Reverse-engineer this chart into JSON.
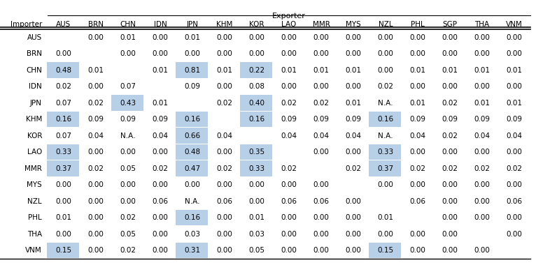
{
  "exporter_label": "Exporter",
  "importer_label": "Importer",
  "columns": [
    "AUS",
    "BRN",
    "CHN",
    "IDN",
    "JPN",
    "KHM",
    "KOR",
    "LAO",
    "MMR",
    "MYS",
    "NZL",
    "PHL",
    "SGP",
    "THA",
    "VNM"
  ],
  "rows": [
    "AUS",
    "BRN",
    "CHN",
    "IDN",
    "JPN",
    "KHM",
    "KOR",
    "LAO",
    "MMR",
    "MYS",
    "NZL",
    "PHL",
    "THA",
    "VNM"
  ],
  "data": [
    [
      "",
      "0.00",
      "0.01",
      "0.00",
      "0.01",
      "0.00",
      "0.00",
      "0.00",
      "0.00",
      "0.00",
      "0.00",
      "0.00",
      "0.00",
      "0.00",
      "0.00"
    ],
    [
      "0.00",
      "",
      "0.00",
      "0.00",
      "0.00",
      "0.00",
      "0.00",
      "0.00",
      "0.00",
      "0.00",
      "0.00",
      "0.00",
      "0.00",
      "0.00",
      "0.00"
    ],
    [
      "0.48",
      "0.01",
      "",
      "0.01",
      "0.81",
      "0.01",
      "0.22",
      "0.01",
      "0.01",
      "0.01",
      "0.00",
      "0.01",
      "0.01",
      "0.01",
      "0.01"
    ],
    [
      "0.02",
      "0.00",
      "0.07",
      "",
      "0.09",
      "0.00",
      "0.08",
      "0.00",
      "0.00",
      "0.00",
      "0.02",
      "0.00",
      "0.00",
      "0.00",
      "0.00"
    ],
    [
      "0.07",
      "0.02",
      "0.43",
      "0.01",
      "",
      "0.02",
      "0.40",
      "0.02",
      "0.02",
      "0.01",
      "N.A.",
      "0.01",
      "0.02",
      "0.01",
      "0.01"
    ],
    [
      "0.16",
      "0.09",
      "0.09",
      "0.09",
      "0.16",
      "",
      "0.16",
      "0.09",
      "0.09",
      "0.09",
      "0.16",
      "0.09",
      "0.09",
      "0.09",
      "0.09"
    ],
    [
      "0.07",
      "0.04",
      "N.A.",
      "0.04",
      "0.66",
      "0.04",
      "",
      "0.04",
      "0.04",
      "0.04",
      "N.A.",
      "0.04",
      "0.02",
      "0.04",
      "0.04"
    ],
    [
      "0.33",
      "0.00",
      "0.00",
      "0.00",
      "0.48",
      "0.00",
      "0.35",
      "",
      "0.00",
      "0.00",
      "0.33",
      "0.00",
      "0.00",
      "0.00",
      "0.00"
    ],
    [
      "0.37",
      "0.02",
      "0.05",
      "0.02",
      "0.47",
      "0.02",
      "0.33",
      "0.02",
      "",
      "0.02",
      "0.37",
      "0.02",
      "0.02",
      "0.02",
      "0.02"
    ],
    [
      "0.00",
      "0.00",
      "0.00",
      "0.00",
      "0.00",
      "0.00",
      "0.00",
      "0.00",
      "0.00",
      "",
      "0.00",
      "0.00",
      "0.00",
      "0.00",
      "0.00"
    ],
    [
      "0.00",
      "0.00",
      "0.00",
      "0.06",
      "N.A.",
      "0.06",
      "0.00",
      "0.06",
      "0.06",
      "0.00",
      "",
      "0.06",
      "0.00",
      "0.00",
      "0.06"
    ],
    [
      "0.01",
      "0.00",
      "0.02",
      "0.00",
      "0.16",
      "0.00",
      "0.01",
      "0.00",
      "0.00",
      "0.00",
      "0.01",
      "",
      "0.00",
      "0.00",
      "0.00"
    ],
    [
      "0.00",
      "0.00",
      "0.05",
      "0.00",
      "0.03",
      "0.00",
      "0.03",
      "0.00",
      "0.00",
      "0.00",
      "0.00",
      "0.00",
      "0.00",
      "",
      "0.00"
    ],
    [
      "0.15",
      "0.00",
      "0.02",
      "0.00",
      "0.31",
      "0.00",
      "0.05",
      "0.00",
      "0.00",
      "0.00",
      "0.15",
      "0.00",
      "0.00",
      "0.00",
      ""
    ]
  ],
  "highlight_color": "#b8cfe8",
  "highlight_threshold": 0.15,
  "background_color": "#ffffff",
  "line_color": "#000000",
  "font_size": 7.5,
  "font_family": "DejaVu Sans"
}
